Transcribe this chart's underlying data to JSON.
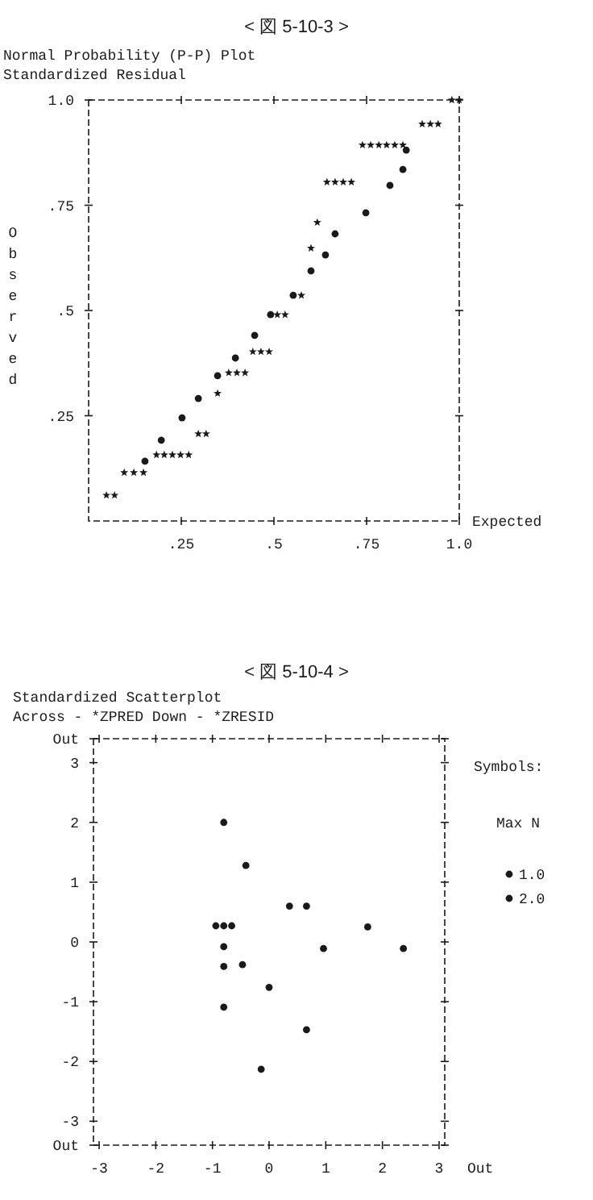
{
  "chart_data": [
    {
      "type": "scatter",
      "title": "< 図 5-10-3 >",
      "subtitle": "Normal Probability (P-P) Plot",
      "annotations": [
        "Standardized Residual"
      ],
      "xlabel": "Expected",
      "ylabel": "Observed",
      "xlim": [
        0,
        1
      ],
      "ylim": [
        0,
        1
      ],
      "xticks": [
        {
          "value": 0.25,
          "label": ".25"
        },
        {
          "value": 0.5,
          "label": ".5"
        },
        {
          "value": 0.75,
          "label": ".75"
        },
        {
          "value": 1,
          "label": "1.0"
        }
      ],
      "yticks": [
        {
          "value": 0.25,
          "label": ".25"
        },
        {
          "value": 0.5,
          "label": ".5"
        },
        {
          "value": 0.75,
          "label": ".75"
        },
        {
          "value": 1,
          "label": "1.0"
        }
      ],
      "grid": false,
      "line_style": "dashed",
      "series": [
        {
          "marker": "star",
          "color": "#1a1a1a",
          "x": [
            0.048,
            0.07,
            0.096,
            0.122,
            0.148,
            0.183,
            0.204,
            0.226,
            0.248,
            0.27,
            0.296,
            0.317,
            0.348,
            0.378,
            0.4,
            0.422,
            0.443,
            0.465,
            0.487,
            0.509,
            0.53,
            0.574,
            0.6,
            0.617,
            0.643,
            0.665,
            0.687,
            0.709,
            0.739,
            0.761,
            0.783,
            0.804,
            0.826,
            0.848,
            0.9,
            0.922,
            0.943,
            0.98,
            1.0
          ],
          "values": [
            0.061,
            0.061,
            0.115,
            0.115,
            0.115,
            0.157,
            0.157,
            0.157,
            0.157,
            0.157,
            0.207,
            0.207,
            0.303,
            0.352,
            0.352,
            0.352,
            0.402,
            0.402,
            0.402,
            0.49,
            0.49,
            0.536,
            0.648,
            0.709,
            0.805,
            0.805,
            0.805,
            0.805,
            0.893,
            0.893,
            0.893,
            0.893,
            0.893,
            0.893,
            0.943,
            0.943,
            0.943,
            1.0,
            1.0
          ]
        },
        {
          "marker": "circle",
          "color": "#1a1a1a",
          "x": [
            0.152,
            0.196,
            0.252,
            0.296,
            0.348,
            0.396,
            0.448,
            0.491,
            0.552,
            0.6,
            0.639,
            0.665,
            0.748,
            0.813,
            0.848,
            0.857
          ],
          "values": [
            0.142,
            0.192,
            0.245,
            0.291,
            0.345,
            0.387,
            0.441,
            0.49,
            0.536,
            0.594,
            0.632,
            0.682,
            0.732,
            0.797,
            0.835,
            0.881
          ]
        }
      ]
    },
    {
      "type": "scatter",
      "title": "< 図 5-10-4 >",
      "subtitle": "Standardized Scatterplot",
      "annotations": [
        "Across - *ZPRED     Down - *ZRESID",
        "Max N",
        "Out"
      ],
      "xlim": [
        -3.1,
        3.1
      ],
      "ylim": [
        -3.4,
        3.4
      ],
      "xticks": [
        -3,
        -2,
        -1,
        0,
        1,
        2,
        3
      ],
      "yticks": [
        {
          "value": -3.4,
          "label": "Out"
        },
        -3,
        -2,
        -1,
        0,
        1,
        2,
        3,
        {
          "value": 3.4,
          "label": "Out"
        }
      ],
      "grid": false,
      "line_style": "dashed",
      "legend": "right",
      "legend_title": "Symbols:",
      "series": [
        {
          "name": "1.0",
          "marker": "circle",
          "color": "#1a1a1a",
          "x": [
            -0.8,
            -0.41,
            0.36,
            0.66,
            -0.94,
            -0.8,
            -0.66,
            1.74,
            -0.8,
            0.96,
            2.37,
            -0.8,
            0,
            -0.8,
            0.66,
            -0.14
          ],
          "values": [
            2.0,
            1.28,
            0.6,
            0.6,
            0.27,
            0.27,
            0.27,
            0.25,
            -0.08,
            -0.11,
            -0.11,
            -0.41,
            -0.76,
            -1.09,
            -1.47,
            -2.13
          ]
        },
        {
          "name": "2.0",
          "marker": "circle",
          "color": "#1a1a1a",
          "x": [
            -0.47
          ],
          "values": [
            -0.38
          ]
        }
      ]
    }
  ]
}
